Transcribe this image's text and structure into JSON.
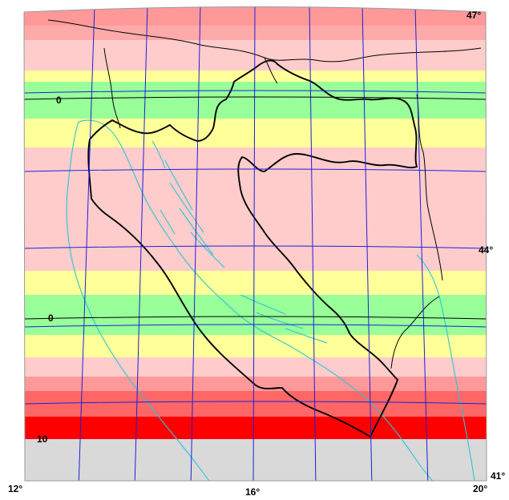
{
  "map": {
    "lat_labels": {
      "north": "47°",
      "middle": "44°",
      "south": "41°"
    },
    "lon_labels": {
      "west": "12°",
      "center": "16°",
      "east": "20°"
    },
    "contour_labels": {
      "upper_zero": "0",
      "lower_zero": "0",
      "ten": "10"
    },
    "band_colors": {
      "red_strong": "#ff0000",
      "red": "#ff6666",
      "salmon": "#ff9999",
      "pink": "#ffcccc",
      "yellow": "#ffff99",
      "green": "#99ff99",
      "gray": "#d9d9d9"
    },
    "line_colors": {
      "graticule": "#1f1fd6",
      "coast": "#2bc4d8",
      "border": "#000000"
    }
  }
}
